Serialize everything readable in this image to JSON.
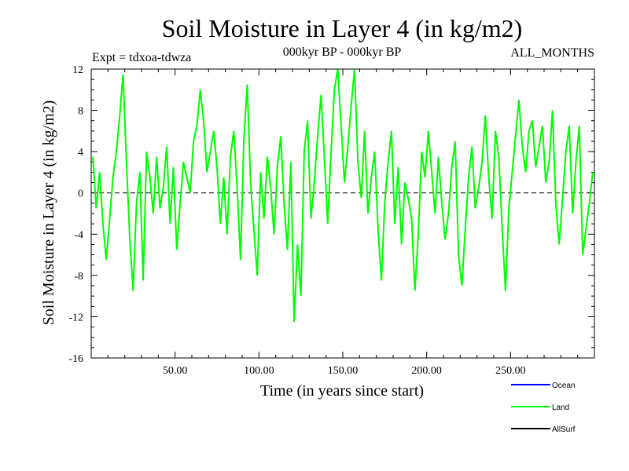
{
  "chart_data": {
    "type": "line",
    "title": "Soil Moisture in Layer 4 (in kg/m2)",
    "subtitle_left": "Expt = tdxoa-tdwza",
    "subtitle_center": "000kyr BP - 000kyr BP",
    "subtitle_right": "ALL_MONTHS",
    "xlabel": "Time (in years since start)",
    "ylabel": "Soil Moisture in Layer 4 (in kg/m2)",
    "xlim": [
      0,
      300
    ],
    "ylim": [
      -16,
      12
    ],
    "x_ticks": [
      50,
      100,
      150,
      200,
      250
    ],
    "x_tick_labels": [
      "50.00",
      "100.00",
      "150.00",
      "200.00",
      "250.00"
    ],
    "y_ticks": [
      -16,
      -12,
      -8,
      -4,
      0,
      4,
      8,
      12
    ],
    "y_tick_labels": [
      "-16",
      "-12",
      "-8",
      "-4",
      "0",
      "4",
      "8",
      "12"
    ],
    "zero_line": true,
    "legend": [
      {
        "name": "Ocean",
        "color": "#0000ff"
      },
      {
        "name": "Land",
        "color": "#00ff00"
      },
      {
        "name": "AllSurf",
        "color": "#000000"
      }
    ],
    "series": [
      {
        "name": "Land",
        "color": "#00ff00",
        "x": [
          1,
          3,
          5,
          7,
          9,
          11,
          13,
          15,
          17,
          19,
          21,
          23,
          25,
          27,
          29,
          31,
          33,
          35,
          37,
          39,
          41,
          43,
          45,
          47,
          49,
          51,
          53,
          55,
          57,
          59,
          61,
          63,
          65,
          67,
          69,
          71,
          73,
          75,
          77,
          79,
          81,
          83,
          85,
          87,
          89,
          91,
          93,
          95,
          97,
          99,
          101,
          103,
          105,
          107,
          109,
          111,
          113,
          115,
          117,
          119,
          121,
          123,
          125,
          127,
          129,
          131,
          133,
          135,
          137,
          139,
          141,
          143,
          145,
          147,
          149,
          151,
          153,
          155,
          157,
          159,
          161,
          163,
          165,
          167,
          169,
          171,
          173,
          175,
          177,
          179,
          181,
          183,
          185,
          187,
          189,
          191,
          193,
          195,
          197,
          199,
          201,
          203,
          205,
          207,
          209,
          211,
          213,
          215,
          217,
          219,
          221,
          223,
          225,
          227,
          229,
          231,
          233,
          235,
          237,
          239,
          241,
          243,
          245,
          247,
          249,
          251,
          253,
          255,
          257,
          259,
          261,
          263,
          265,
          267,
          269,
          271,
          273,
          275,
          277,
          279,
          281,
          283,
          285,
          287,
          289,
          291,
          293,
          295,
          297,
          299
        ],
        "values": [
          3.5,
          -1.5,
          2.0,
          -3.0,
          -6.5,
          -2.5,
          1.5,
          4.0,
          7.5,
          11.5,
          3.0,
          -4.5,
          -9.5,
          -1.0,
          2.0,
          -8.5,
          4.0,
          1.5,
          -2.0,
          3.5,
          -1.5,
          0.5,
          4.5,
          -3.0,
          2.5,
          -5.5,
          -1.0,
          3.0,
          1.5,
          0.0,
          5.0,
          6.5,
          10.0,
          7.0,
          2.0,
          4.0,
          6.0,
          2.5,
          -3.0,
          1.5,
          -4.0,
          3.5,
          6.0,
          0.5,
          -6.5,
          5.0,
          10.5,
          1.0,
          -3.5,
          -8.0,
          2.0,
          -2.5,
          3.5,
          0.5,
          -4.0,
          2.5,
          5.5,
          -1.0,
          -5.5,
          3.0,
          -12.5,
          -5.0,
          -10.0,
          4.0,
          7.0,
          -2.5,
          1.0,
          5.5,
          9.5,
          3.5,
          -3.0,
          4.0,
          10.0,
          12.0,
          6.5,
          1.0,
          4.5,
          8.5,
          12.0,
          3.0,
          -0.5,
          6.0,
          -2.0,
          1.5,
          4.0,
          -3.5,
          -8.5,
          -1.0,
          3.0,
          6.0,
          -3.0,
          2.5,
          -5.0,
          1.0,
          -0.5,
          -2.5,
          -9.5,
          -4.0,
          4.0,
          1.5,
          6.0,
          2.0,
          -2.0,
          3.5,
          -1.0,
          -4.5,
          -2.0,
          2.5,
          5.0,
          -6.0,
          -9.0,
          -3.5,
          1.5,
          4.5,
          -1.5,
          0.5,
          3.0,
          7.5,
          1.5,
          -2.5,
          6.0,
          3.5,
          -3.5,
          -9.5,
          -1.5,
          2.0,
          5.5,
          9.0,
          4.5,
          2.0,
          6.0,
          7.0,
          2.5,
          4.5,
          6.5,
          1.0,
          3.0,
          8.0,
          -1.0,
          -5.0,
          -0.5,
          4.0,
          6.5,
          -2.0,
          3.0,
          6.5,
          -6.0,
          -3.5,
          -1.0,
          2.0
        ]
      }
    ]
  }
}
